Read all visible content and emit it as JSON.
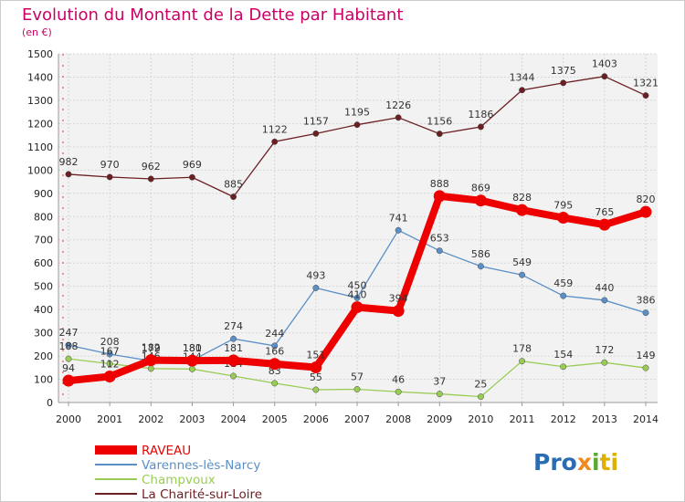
{
  "chart_data": {
    "type": "line",
    "title": "Evolution du Montant de la Dette par Habitant",
    "subtitle": "(en €)",
    "xlabel": "",
    "ylabel": "",
    "ylim": [
      0,
      1500
    ],
    "yticks": [
      0,
      100,
      200,
      300,
      400,
      500,
      600,
      700,
      800,
      900,
      1000,
      1100,
      1200,
      1300,
      1400,
      1500
    ],
    "x": [
      "2000",
      "2001",
      "2002",
      "2003",
      "2004",
      "2005",
      "2006",
      "2007",
      "2008",
      "2009",
      "2010",
      "2011",
      "2012",
      "2013",
      "2014"
    ],
    "grid": true,
    "legend_position": "bottom-left",
    "series": [
      {
        "name": "La Charité-sur-Loire",
        "color": "#6b1f23",
        "values": [
          982,
          970,
          962,
          969,
          885,
          1122,
          1157,
          1195,
          1226,
          1156,
          1186,
          1344,
          1375,
          1403,
          1321
        ]
      },
      {
        "name": "Varennes-lès-Narcy",
        "color": "#5b8fc7",
        "values": [
          247,
          208,
          179,
          181,
          274,
          244,
          493,
          450,
          741,
          653,
          586,
          549,
          459,
          440,
          386
        ]
      },
      {
        "name": "Champvoux",
        "color": "#99cc55",
        "values": [
          188,
          167,
          146,
          144,
          114,
          83,
          55,
          57,
          46,
          37,
          25,
          178,
          154,
          172,
          149
        ]
      },
      {
        "name": "RAVEAU",
        "color": "#ee0000",
        "values": [
          94,
          112,
          182,
          180,
          181,
          166,
          151,
          410,
          394,
          888,
          869,
          828,
          795,
          765,
          820
        ]
      }
    ],
    "legend_order": [
      "RAVEAU",
      "Varennes-lès-Narcy",
      "Champvoux",
      "La Charité-sur-Loire"
    ]
  },
  "branding": {
    "logo_text": "Proxiti"
  }
}
